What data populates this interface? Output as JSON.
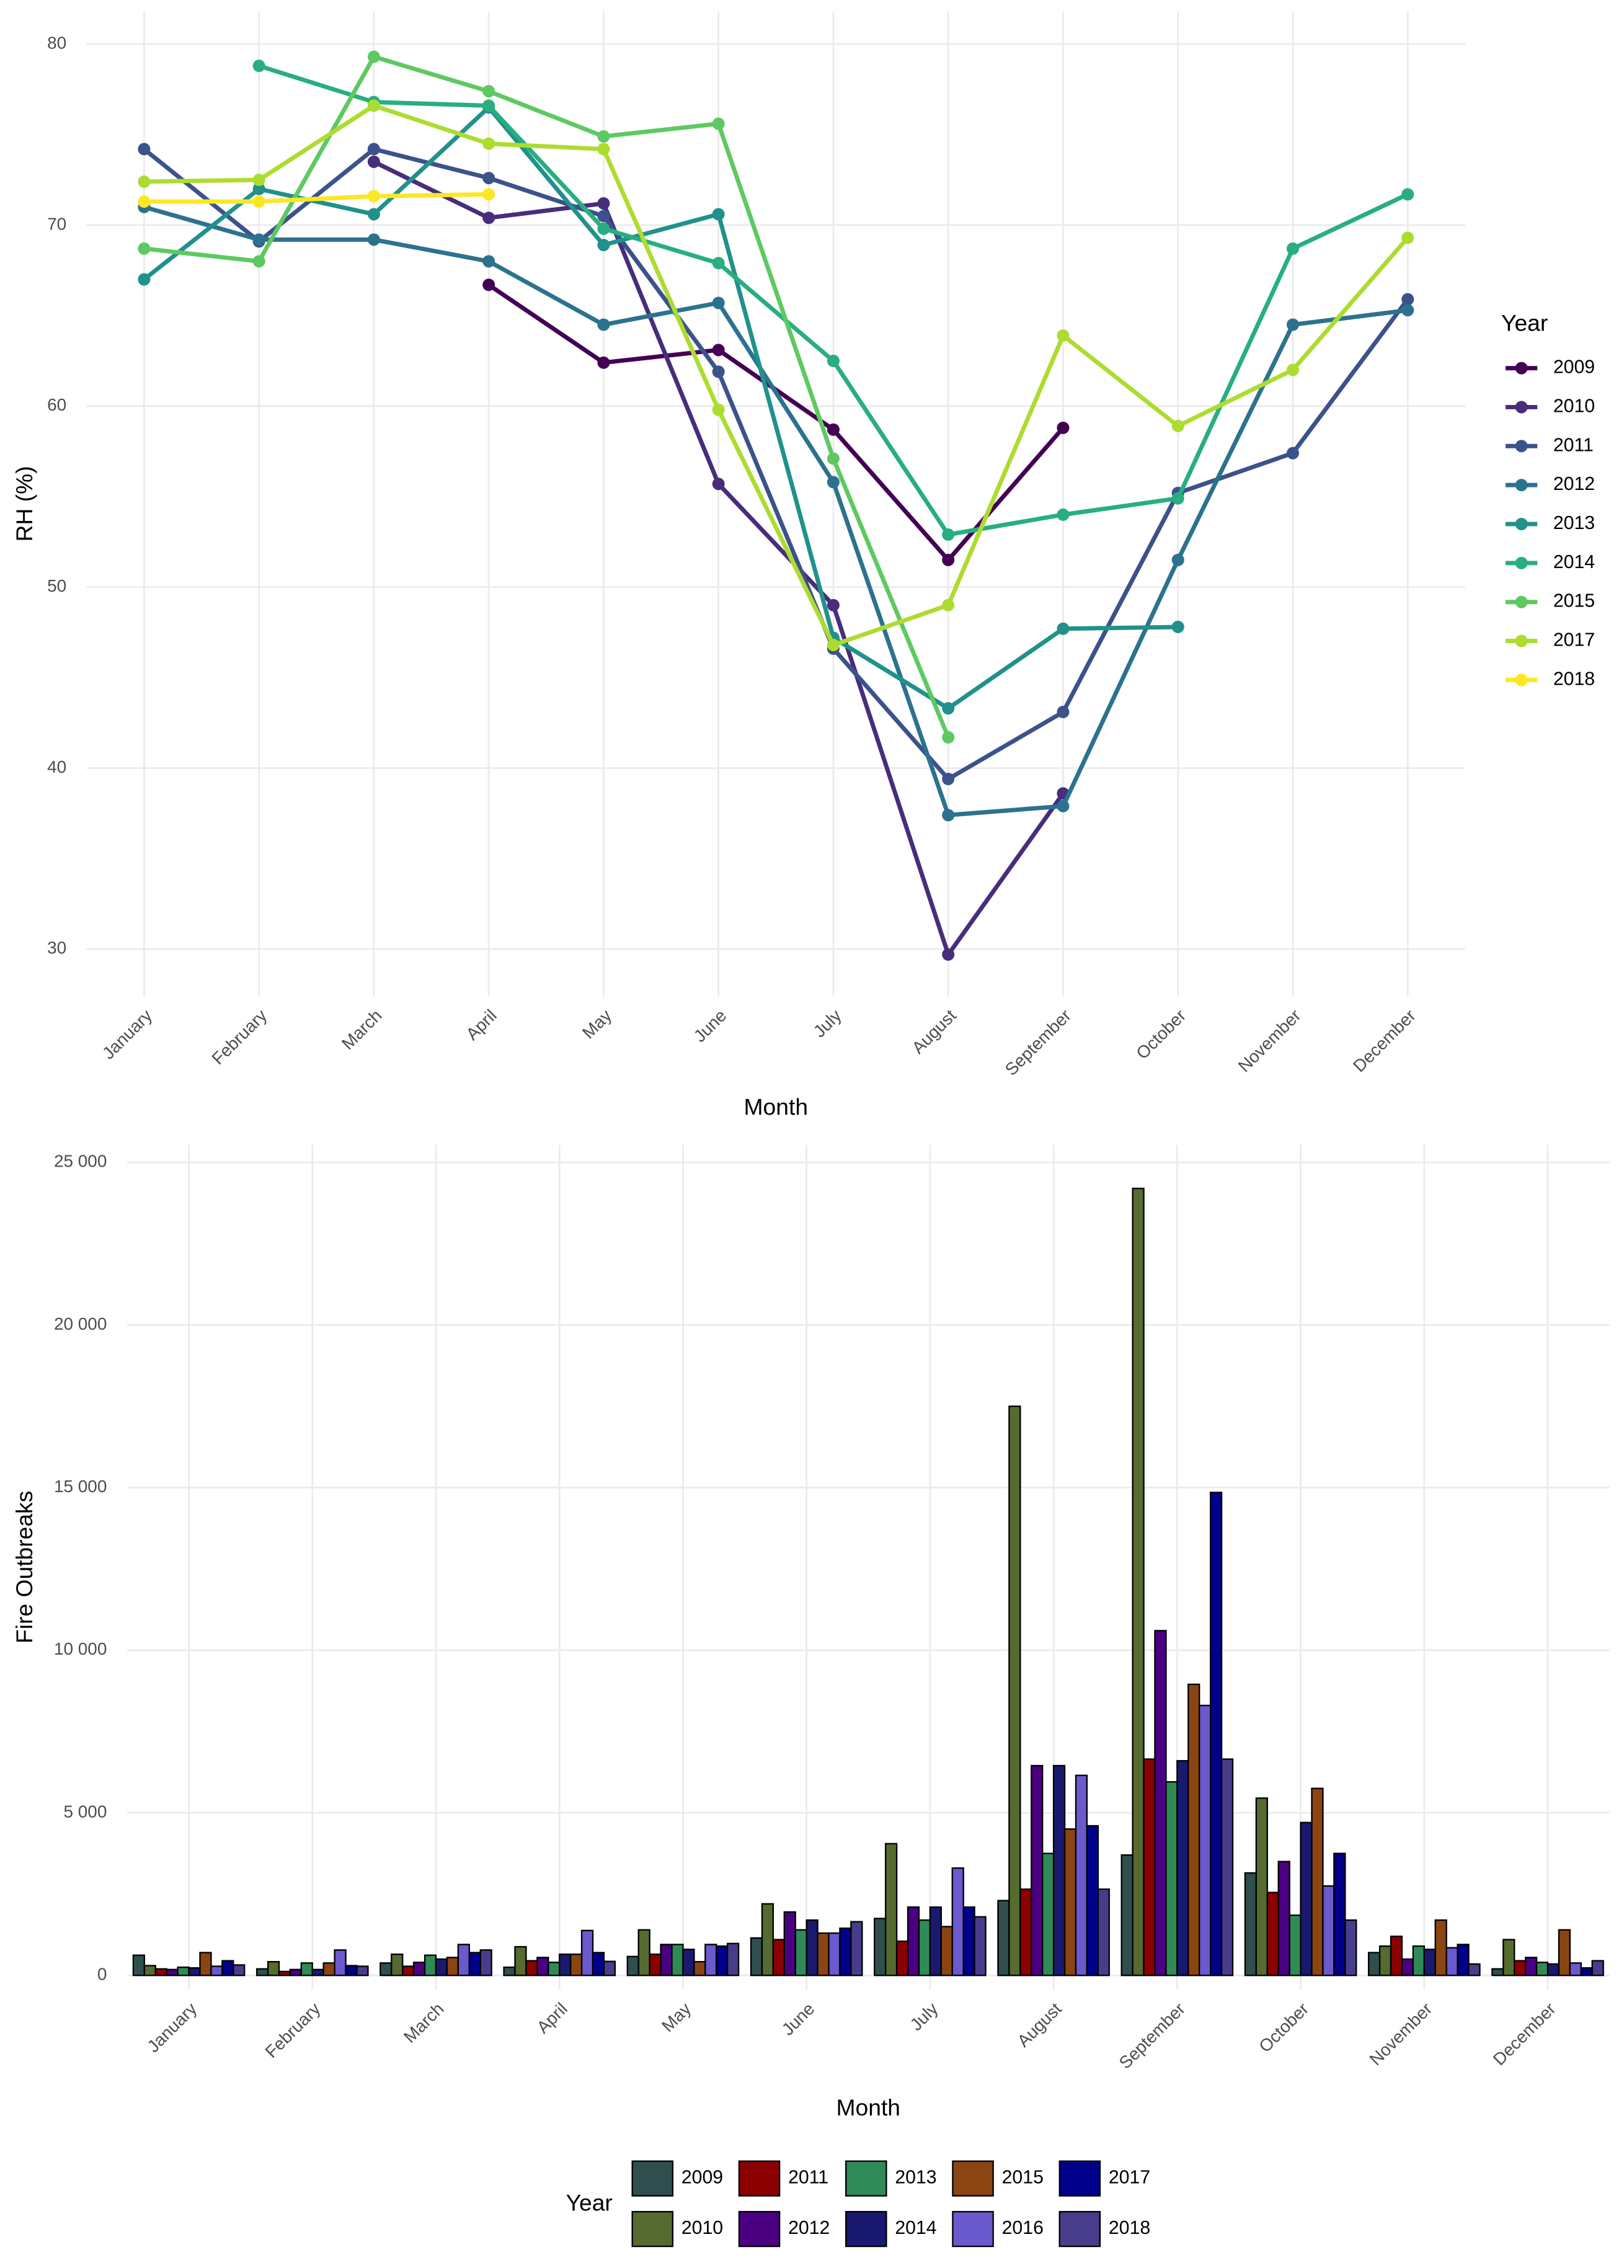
{
  "chart_data": [
    {
      "type": "line",
      "x_label": "Month",
      "y_label": "RH (%)",
      "legend_title": "Year",
      "legend": "right",
      "grid": true,
      "categories": [
        "January",
        "February",
        "March",
        "April",
        "May",
        "June",
        "July",
        "August",
        "September",
        "October",
        "November",
        "December"
      ],
      "ylim": [
        27.4,
        81.8
      ],
      "yticks": [
        30,
        40,
        50,
        60,
        70,
        80
      ],
      "series": [
        {
          "name": "2009",
          "color": "#440154",
          "values": [
            null,
            null,
            null,
            66.7,
            62.4,
            63.1,
            58.7,
            51.5,
            58.8,
            null,
            null,
            null
          ]
        },
        {
          "name": "2010",
          "color": "#472d7b",
          "values": [
            null,
            null,
            73.5,
            70.4,
            71.2,
            55.7,
            49.0,
            29.7,
            38.6,
            null,
            null,
            null
          ]
        },
        {
          "name": "2011",
          "color": "#3b528b",
          "values": [
            74.2,
            69.1,
            74.2,
            72.6,
            70.5,
            61.9,
            46.6,
            39.4,
            43.1,
            55.2,
            57.4,
            65.9
          ]
        },
        {
          "name": "2012",
          "color": "#2c728e",
          "values": [
            71.0,
            69.2,
            69.2,
            68.0,
            64.5,
            65.7,
            55.8,
            37.4,
            37.9,
            51.5,
            64.5,
            65.3
          ]
        },
        {
          "name": "2013",
          "color": "#21918c",
          "values": [
            67.0,
            72.0,
            70.6,
            76.5,
            68.9,
            70.6,
            47.2,
            43.3,
            47.7,
            47.8,
            null,
            null
          ]
        },
        {
          "name": "2014",
          "color": "#28ae80",
          "values": [
            null,
            78.8,
            76.8,
            76.6,
            69.8,
            67.9,
            62.5,
            52.9,
            54.0,
            54.9,
            68.7,
            71.7
          ]
        },
        {
          "name": "2015",
          "color": "#5ec962",
          "values": [
            68.7,
            68.0,
            79.3,
            77.4,
            74.9,
            75.6,
            57.1,
            41.7,
            null,
            null,
            null,
            null
          ]
        },
        {
          "name": "2017",
          "color": "#addc30",
          "values": [
            72.4,
            72.5,
            76.6,
            74.5,
            74.2,
            59.8,
            46.8,
            49.0,
            63.9,
            58.9,
            62.0,
            69.3
          ]
        },
        {
          "name": "2018",
          "color": "#fde725",
          "values": [
            71.3,
            71.3,
            71.6,
            71.7,
            null,
            null,
            null,
            null,
            null,
            null,
            null,
            null
          ]
        }
      ]
    },
    {
      "type": "bar",
      "x_label": "Month",
      "y_label": "Fire Outbreaks",
      "legend_title": "Year",
      "legend": "bottom",
      "grid": true,
      "categories": [
        "January",
        "February",
        "March",
        "April",
        "May",
        "June",
        "July",
        "August",
        "September",
        "October",
        "November",
        "December"
      ],
      "ylim": [
        -430,
        25540
      ],
      "yticks": [
        0,
        {
          "value": 5000,
          "label": "5 000"
        },
        {
          "value": 10000,
          "label": "10 000"
        },
        {
          "value": 15000,
          "label": "15 000"
        },
        {
          "value": 20000,
          "label": "20 000"
        },
        {
          "value": 25000,
          "label": "25 000"
        }
      ],
      "series": [
        {
          "name": "2009",
          "color": "#2f4f4f",
          "values": [
            620,
            200,
            380,
            250,
            580,
            1150,
            1750,
            2300,
            3700,
            3150,
            700,
            200
          ]
        },
        {
          "name": "2010",
          "color": "#556b2f",
          "values": [
            300,
            420,
            650,
            880,
            1400,
            2200,
            4050,
            17500,
            24200,
            5450,
            900,
            1100
          ]
        },
        {
          "name": "2011",
          "color": "#8b0000",
          "values": [
            200,
            120,
            280,
            450,
            650,
            1100,
            1050,
            2650,
            6650,
            2550,
            1200,
            450
          ]
        },
        {
          "name": "2012",
          "color": "#4b0082",
          "values": [
            180,
            180,
            400,
            550,
            950,
            1950,
            2100,
            6450,
            10600,
            3500,
            500,
            550
          ]
        },
        {
          "name": "2013",
          "color": "#2e8b57",
          "values": [
            250,
            380,
            620,
            400,
            950,
            1400,
            1700,
            3750,
            5950,
            1850,
            900,
            400
          ]
        },
        {
          "name": "2014",
          "color": "#191970",
          "values": [
            230,
            180,
            500,
            650,
            800,
            1700,
            2100,
            6450,
            6600,
            4700,
            800,
            350
          ]
        },
        {
          "name": "2015",
          "color": "#8b4513",
          "values": [
            700,
            380,
            550,
            650,
            420,
            1300,
            1500,
            4500,
            8950,
            5750,
            1700,
            1400
          ]
        },
        {
          "name": "2016",
          "color": "#6a5acd",
          "values": [
            280,
            780,
            950,
            1380,
            950,
            1300,
            3300,
            6150,
            8300,
            2750,
            850,
            380
          ]
        },
        {
          "name": "2017",
          "color": "#00008b",
          "values": [
            450,
            300,
            700,
            700,
            900,
            1450,
            2100,
            4600,
            14850,
            3750,
            950,
            230
          ]
        },
        {
          "name": "2018",
          "color": "#483d8b",
          "values": [
            320,
            280,
            780,
            430,
            980,
            1650,
            1800,
            2650,
            6650,
            1700,
            350,
            450
          ]
        }
      ]
    }
  ]
}
